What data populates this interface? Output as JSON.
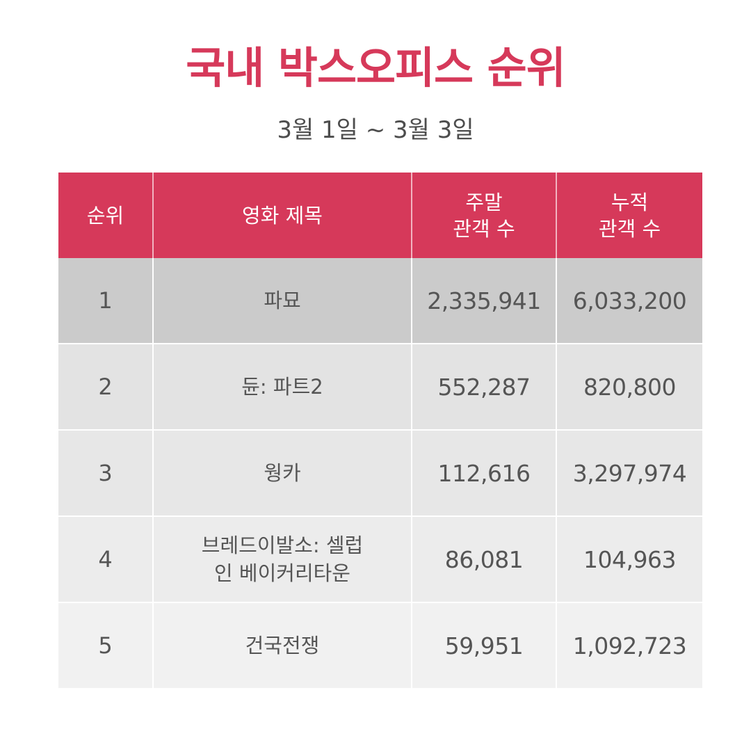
{
  "title": "국내 박스오피스 순위",
  "subtitle": "3월 1일 ~ 3월 3일",
  "table": {
    "headers": {
      "rank": "순위",
      "movie_title": "영화 제목",
      "weekend_line1": "주말",
      "weekend_line2": "관객 수",
      "total_line1": "누적",
      "total_line2": "관객 수"
    },
    "rows": [
      {
        "rank": "1",
        "title_line1": "파묘",
        "title_line2": "",
        "weekend": "2,335,941",
        "total": "6,033,200"
      },
      {
        "rank": "2",
        "title_line1": "듄: 파트2",
        "title_line2": "",
        "weekend": "552,287",
        "total": "820,800"
      },
      {
        "rank": "3",
        "title_line1": "웡카",
        "title_line2": "",
        "weekend": "112,616",
        "total": "3,297,974"
      },
      {
        "rank": "4",
        "title_line1": "브레드이발소: 셀럽",
        "title_line2": "인 베이커리타운",
        "weekend": "86,081",
        "total": "104,963"
      },
      {
        "rank": "5",
        "title_line1": "건국전쟁",
        "title_line2": "",
        "weekend": "59,951",
        "total": "1,092,723"
      }
    ]
  },
  "colors": {
    "accent": "#d6395a",
    "text": "#555555"
  }
}
